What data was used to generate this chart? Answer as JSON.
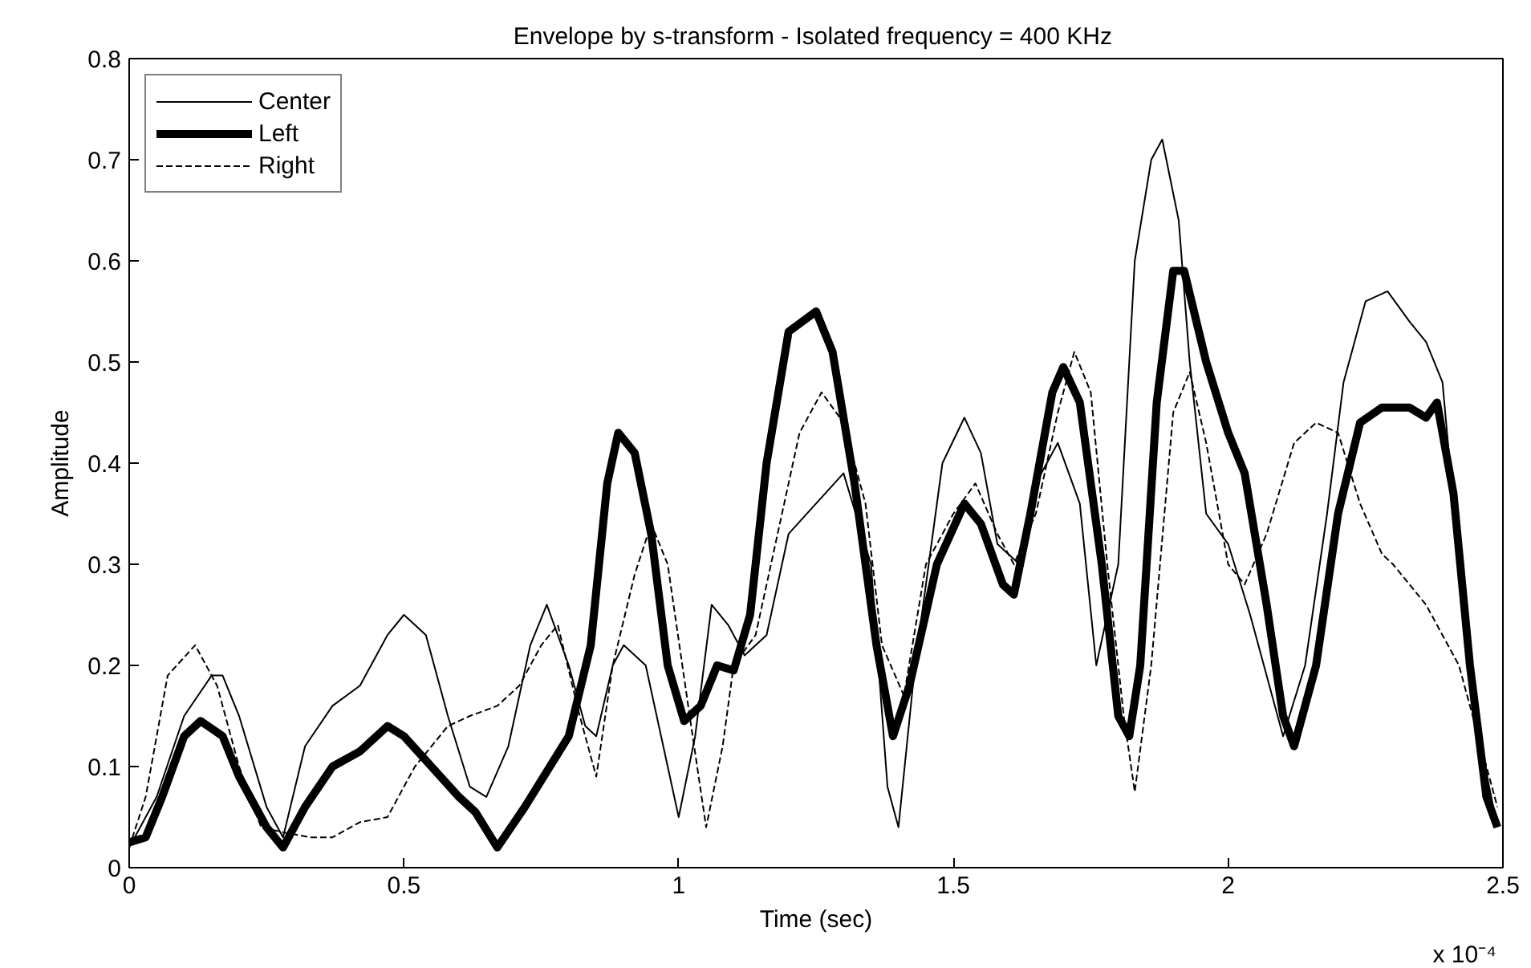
{
  "chart_data": {
    "type": "line",
    "title": "Envelope by s-transform -  Isolated frequency = 400 KHz",
    "xlabel": "Time (sec)",
    "ylabel": "Amplitude",
    "annotations": [
      "x 10⁻⁴"
    ],
    "xlim": [
      0,
      2.5
    ],
    "xticks": [
      0,
      0.5,
      1,
      1.5,
      2,
      2.5
    ],
    "ylim": [
      0,
      0.8
    ],
    "yticks": [
      0,
      0.1,
      0.2,
      0.3,
      0.4,
      0.5,
      0.6,
      0.7,
      0.8
    ],
    "grid": false,
    "legend": "top left",
    "marker": "none",
    "series": [
      {
        "name": "Center",
        "color": "#000000",
        "line_style": "solid",
        "x": [
          0,
          0.05,
          0.1,
          0.15,
          0.17,
          0.2,
          0.25,
          0.28,
          0.32,
          0.37,
          0.42,
          0.47,
          0.5,
          0.54,
          0.58,
          0.62,
          0.65,
          0.69,
          0.73,
          0.76,
          0.8,
          0.83,
          0.85,
          0.88,
          0.9,
          0.94,
          0.98,
          1.0,
          1.03,
          1.06,
          1.09,
          1.12,
          1.16,
          1.2,
          1.25,
          1.3,
          1.35,
          1.38,
          1.4,
          1.43,
          1.48,
          1.52,
          1.55,
          1.58,
          1.62,
          1.65,
          1.69,
          1.73,
          1.76,
          1.8,
          1.83,
          1.86,
          1.88,
          1.91,
          1.93,
          1.96,
          2.0,
          2.04,
          2.1,
          2.14,
          2.18,
          2.21,
          2.25,
          2.29,
          2.33,
          2.36,
          2.39,
          2.42,
          2.46,
          2.49
        ],
        "values": [
          0.02,
          0.07,
          0.15,
          0.19,
          0.19,
          0.15,
          0.06,
          0.03,
          0.12,
          0.16,
          0.18,
          0.23,
          0.25,
          0.23,
          0.15,
          0.08,
          0.07,
          0.12,
          0.22,
          0.26,
          0.2,
          0.14,
          0.13,
          0.2,
          0.22,
          0.2,
          0.1,
          0.05,
          0.13,
          0.26,
          0.24,
          0.21,
          0.23,
          0.33,
          0.36,
          0.39,
          0.3,
          0.08,
          0.04,
          0.2,
          0.4,
          0.445,
          0.41,
          0.32,
          0.3,
          0.38,
          0.42,
          0.36,
          0.2,
          0.3,
          0.6,
          0.7,
          0.72,
          0.64,
          0.5,
          0.35,
          0.32,
          0.25,
          0.13,
          0.2,
          0.35,
          0.48,
          0.56,
          0.57,
          0.54,
          0.52,
          0.48,
          0.3,
          0.12,
          0.04
        ]
      },
      {
        "name": "Left",
        "color": "#000000",
        "line_style": "solid",
        "x": [
          0,
          0.03,
          0.06,
          0.1,
          0.13,
          0.17,
          0.2,
          0.25,
          0.28,
          0.32,
          0.37,
          0.42,
          0.47,
          0.5,
          0.55,
          0.6,
          0.63,
          0.67,
          0.72,
          0.8,
          0.84,
          0.87,
          0.89,
          0.92,
          0.95,
          0.98,
          1.01,
          1.04,
          1.07,
          1.1,
          1.13,
          1.16,
          1.2,
          1.25,
          1.28,
          1.32,
          1.36,
          1.39,
          1.42,
          1.47,
          1.52,
          1.55,
          1.59,
          1.61,
          1.64,
          1.68,
          1.7,
          1.73,
          1.77,
          1.8,
          1.82,
          1.84,
          1.87,
          1.9,
          1.92,
          1.96,
          2.0,
          2.03,
          2.07,
          2.1,
          2.12,
          2.16,
          2.2,
          2.24,
          2.28,
          2.33,
          2.36,
          2.38,
          2.41,
          2.44,
          2.47,
          2.49
        ],
        "values": [
          0.025,
          0.03,
          0.07,
          0.13,
          0.145,
          0.13,
          0.09,
          0.04,
          0.02,
          0.06,
          0.1,
          0.115,
          0.14,
          0.13,
          0.1,
          0.07,
          0.055,
          0.02,
          0.06,
          0.13,
          0.22,
          0.38,
          0.43,
          0.41,
          0.33,
          0.2,
          0.145,
          0.16,
          0.2,
          0.195,
          0.25,
          0.4,
          0.53,
          0.55,
          0.51,
          0.38,
          0.22,
          0.13,
          0.18,
          0.3,
          0.36,
          0.34,
          0.28,
          0.27,
          0.35,
          0.47,
          0.495,
          0.46,
          0.3,
          0.15,
          0.13,
          0.2,
          0.46,
          0.59,
          0.59,
          0.5,
          0.43,
          0.39,
          0.26,
          0.15,
          0.12,
          0.2,
          0.35,
          0.44,
          0.455,
          0.455,
          0.445,
          0.46,
          0.37,
          0.2,
          0.07,
          0.04
        ]
      },
      {
        "name": "Right",
        "color": "#000000",
        "line_style": "dashed",
        "x": [
          0,
          0.03,
          0.07,
          0.12,
          0.16,
          0.2,
          0.24,
          0.28,
          0.33,
          0.37,
          0.42,
          0.47,
          0.52,
          0.58,
          0.62,
          0.67,
          0.71,
          0.75,
          0.78,
          0.82,
          0.85,
          0.88,
          0.92,
          0.95,
          0.98,
          1.02,
          1.05,
          1.08,
          1.1,
          1.14,
          1.18,
          1.22,
          1.26,
          1.3,
          1.34,
          1.37,
          1.41,
          1.45,
          1.5,
          1.54,
          1.58,
          1.61,
          1.65,
          1.69,
          1.72,
          1.75,
          1.78,
          1.81,
          1.83,
          1.86,
          1.9,
          1.93,
          1.96,
          2.0,
          2.03,
          2.07,
          2.12,
          2.16,
          2.2,
          2.24,
          2.28,
          2.3,
          2.36,
          2.42,
          2.46,
          2.49
        ],
        "values": [
          0.02,
          0.07,
          0.19,
          0.22,
          0.18,
          0.1,
          0.04,
          0.035,
          0.03,
          0.03,
          0.045,
          0.05,
          0.1,
          0.14,
          0.15,
          0.16,
          0.18,
          0.22,
          0.24,
          0.15,
          0.09,
          0.2,
          0.29,
          0.34,
          0.3,
          0.15,
          0.04,
          0.12,
          0.2,
          0.23,
          0.33,
          0.43,
          0.47,
          0.44,
          0.36,
          0.22,
          0.17,
          0.3,
          0.35,
          0.38,
          0.33,
          0.3,
          0.35,
          0.45,
          0.51,
          0.47,
          0.3,
          0.15,
          0.075,
          0.2,
          0.45,
          0.49,
          0.42,
          0.3,
          0.28,
          0.33,
          0.42,
          0.44,
          0.43,
          0.36,
          0.31,
          0.3,
          0.26,
          0.2,
          0.12,
          0.06
        ]
      }
    ]
  }
}
